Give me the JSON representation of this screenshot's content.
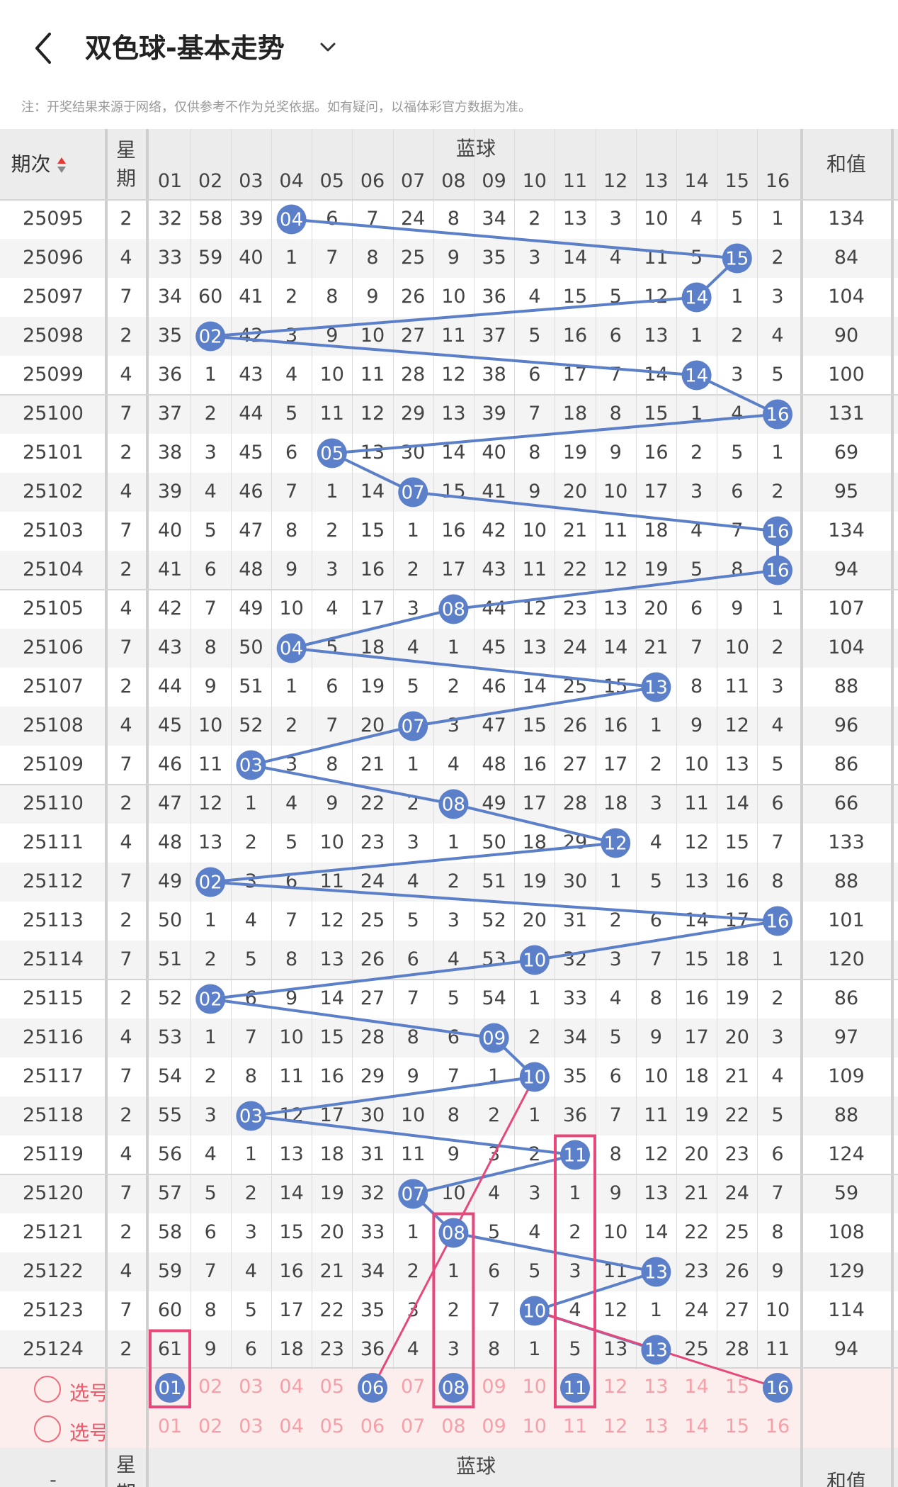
{
  "header": {
    "title": "双色球-基本走势",
    "notice": "注：开奖结果来源于网络，仅供参考不作为兑奖依据。如有疑问，以福体彩官方数据为准。"
  },
  "table": {
    "col_period": "期次",
    "col_weekday": "星期",
    "col_blue": "蓝球",
    "col_sum": "和值",
    "ball_numbers": [
      "01",
      "02",
      "03",
      "04",
      "05",
      "06",
      "07",
      "08",
      "09",
      "10",
      "11",
      "12",
      "13",
      "14",
      "15",
      "16"
    ],
    "rows": [
      {
        "period": "25095",
        "weekday": "2",
        "cells": [
          "32",
          "58",
          "39",
          "04",
          "6",
          "7",
          "24",
          "8",
          "34",
          "2",
          "13",
          "3",
          "10",
          "4",
          "5",
          "1"
        ],
        "hit": 4,
        "sum": "134"
      },
      {
        "period": "25096",
        "weekday": "4",
        "cells": [
          "33",
          "59",
          "40",
          "1",
          "7",
          "8",
          "25",
          "9",
          "35",
          "3",
          "14",
          "4",
          "11",
          "5",
          "15",
          "2"
        ],
        "hit": 15,
        "sum": "84"
      },
      {
        "period": "25097",
        "weekday": "7",
        "cells": [
          "34",
          "60",
          "41",
          "2",
          "8",
          "9",
          "26",
          "10",
          "36",
          "4",
          "15",
          "5",
          "12",
          "14",
          "1",
          "3"
        ],
        "hit": 14,
        "sum": "104"
      },
      {
        "period": "25098",
        "weekday": "2",
        "cells": [
          "35",
          "02",
          "42",
          "3",
          "9",
          "10",
          "27",
          "11",
          "37",
          "5",
          "16",
          "6",
          "13",
          "1",
          "2",
          "4"
        ],
        "hit": 2,
        "sum": "90"
      },
      {
        "period": "25099",
        "weekday": "4",
        "cells": [
          "36",
          "1",
          "43",
          "4",
          "10",
          "11",
          "28",
          "12",
          "38",
          "6",
          "17",
          "7",
          "14",
          "14",
          "3",
          "5"
        ],
        "hit": 14,
        "sum": "100"
      },
      {
        "period": "25100",
        "weekday": "7",
        "cells": [
          "37",
          "2",
          "44",
          "5",
          "11",
          "12",
          "29",
          "13",
          "39",
          "7",
          "18",
          "8",
          "15",
          "1",
          "4",
          "16"
        ],
        "hit": 16,
        "sum": "131"
      },
      {
        "period": "25101",
        "weekday": "2",
        "cells": [
          "38",
          "3",
          "45",
          "6",
          "05",
          "13",
          "30",
          "14",
          "40",
          "8",
          "19",
          "9",
          "16",
          "2",
          "5",
          "1"
        ],
        "hit": 5,
        "sum": "69"
      },
      {
        "period": "25102",
        "weekday": "4",
        "cells": [
          "39",
          "4",
          "46",
          "7",
          "1",
          "14",
          "07",
          "15",
          "41",
          "9",
          "20",
          "10",
          "17",
          "3",
          "6",
          "2"
        ],
        "hit": 7,
        "sum": "95"
      },
      {
        "period": "25103",
        "weekday": "7",
        "cells": [
          "40",
          "5",
          "47",
          "8",
          "2",
          "15",
          "1",
          "16",
          "42",
          "10",
          "21",
          "11",
          "18",
          "4",
          "7",
          "16"
        ],
        "hit": 16,
        "sum": "134"
      },
      {
        "period": "25104",
        "weekday": "2",
        "cells": [
          "41",
          "6",
          "48",
          "9",
          "3",
          "16",
          "2",
          "17",
          "43",
          "11",
          "22",
          "12",
          "19",
          "5",
          "8",
          "16"
        ],
        "hit": 16,
        "sum": "94"
      },
      {
        "period": "25105",
        "weekday": "4",
        "cells": [
          "42",
          "7",
          "49",
          "10",
          "4",
          "17",
          "3",
          "08",
          "44",
          "12",
          "23",
          "13",
          "20",
          "6",
          "9",
          "1"
        ],
        "hit": 8,
        "sum": "107"
      },
      {
        "period": "25106",
        "weekday": "7",
        "cells": [
          "43",
          "8",
          "50",
          "04",
          "5",
          "18",
          "4",
          "1",
          "45",
          "13",
          "24",
          "14",
          "21",
          "7",
          "10",
          "2"
        ],
        "hit": 4,
        "sum": "104"
      },
      {
        "period": "25107",
        "weekday": "2",
        "cells": [
          "44",
          "9",
          "51",
          "1",
          "6",
          "19",
          "5",
          "2",
          "46",
          "14",
          "25",
          "15",
          "13",
          "8",
          "11",
          "3"
        ],
        "hit": 13,
        "sum": "88"
      },
      {
        "period": "25108",
        "weekday": "4",
        "cells": [
          "45",
          "10",
          "52",
          "2",
          "7",
          "20",
          "07",
          "3",
          "47",
          "15",
          "26",
          "16",
          "1",
          "9",
          "12",
          "4"
        ],
        "hit": 7,
        "sum": "96"
      },
      {
        "period": "25109",
        "weekday": "7",
        "cells": [
          "46",
          "11",
          "03",
          "3",
          "8",
          "21",
          "1",
          "4",
          "48",
          "16",
          "27",
          "17",
          "2",
          "10",
          "13",
          "5"
        ],
        "hit": 3,
        "sum": "86"
      },
      {
        "period": "25110",
        "weekday": "2",
        "cells": [
          "47",
          "12",
          "1",
          "4",
          "9",
          "22",
          "2",
          "08",
          "49",
          "17",
          "28",
          "18",
          "3",
          "11",
          "14",
          "6"
        ],
        "hit": 8,
        "sum": "66"
      },
      {
        "period": "25111",
        "weekday": "4",
        "cells": [
          "48",
          "13",
          "2",
          "5",
          "10",
          "23",
          "3",
          "1",
          "50",
          "18",
          "29",
          "12",
          "4",
          "12",
          "15",
          "7"
        ],
        "hit": 12,
        "sum": "133"
      },
      {
        "period": "25112",
        "weekday": "7",
        "cells": [
          "49",
          "02",
          "3",
          "6",
          "11",
          "24",
          "4",
          "2",
          "51",
          "19",
          "30",
          "1",
          "5",
          "13",
          "16",
          "8"
        ],
        "hit": 2,
        "sum": "88"
      },
      {
        "period": "25113",
        "weekday": "2",
        "cells": [
          "50",
          "1",
          "4",
          "7",
          "12",
          "25",
          "5",
          "3",
          "52",
          "20",
          "31",
          "2",
          "6",
          "14",
          "17",
          "16"
        ],
        "hit": 16,
        "sum": "101"
      },
      {
        "period": "25114",
        "weekday": "7",
        "cells": [
          "51",
          "2",
          "5",
          "8",
          "13",
          "26",
          "6",
          "4",
          "53",
          "10",
          "32",
          "3",
          "7",
          "15",
          "18",
          "1"
        ],
        "hit": 10,
        "sum": "120"
      },
      {
        "period": "25115",
        "weekday": "2",
        "cells": [
          "52",
          "02",
          "6",
          "9",
          "14",
          "27",
          "7",
          "5",
          "54",
          "1",
          "33",
          "4",
          "8",
          "16",
          "19",
          "2"
        ],
        "hit": 2,
        "sum": "86"
      },
      {
        "period": "25116",
        "weekday": "4",
        "cells": [
          "53",
          "1",
          "7",
          "10",
          "15",
          "28",
          "8",
          "6",
          "09",
          "2",
          "34",
          "5",
          "9",
          "17",
          "20",
          "3"
        ],
        "hit": 9,
        "sum": "97"
      },
      {
        "period": "25117",
        "weekday": "7",
        "cells": [
          "54",
          "2",
          "8",
          "11",
          "16",
          "29",
          "9",
          "7",
          "1",
          "10",
          "35",
          "6",
          "10",
          "18",
          "21",
          "4"
        ],
        "hit": 10,
        "sum": "109"
      },
      {
        "period": "25118",
        "weekday": "2",
        "cells": [
          "55",
          "3",
          "03",
          "12",
          "17",
          "30",
          "10",
          "8",
          "2",
          "1",
          "36",
          "7",
          "11",
          "19",
          "22",
          "5"
        ],
        "hit": 3,
        "sum": "88"
      },
      {
        "period": "25119",
        "weekday": "4",
        "cells": [
          "56",
          "4",
          "1",
          "13",
          "18",
          "31",
          "11",
          "9",
          "3",
          "2",
          "11",
          "8",
          "12",
          "20",
          "23",
          "6"
        ],
        "hit": 11,
        "sum": "124"
      },
      {
        "period": "25120",
        "weekday": "7",
        "cells": [
          "57",
          "5",
          "2",
          "14",
          "19",
          "32",
          "07",
          "10",
          "4",
          "3",
          "1",
          "9",
          "13",
          "21",
          "24",
          "7"
        ],
        "hit": 7,
        "sum": "59"
      },
      {
        "period": "25121",
        "weekday": "2",
        "cells": [
          "58",
          "6",
          "3",
          "15",
          "20",
          "33",
          "1",
          "08",
          "5",
          "4",
          "2",
          "10",
          "14",
          "22",
          "25",
          "8"
        ],
        "hit": 8,
        "sum": "108"
      },
      {
        "period": "25122",
        "weekday": "4",
        "cells": [
          "59",
          "7",
          "4",
          "16",
          "21",
          "34",
          "2",
          "1",
          "6",
          "5",
          "3",
          "11",
          "13",
          "23",
          "26",
          "9"
        ],
        "hit": 13,
        "sum": "129"
      },
      {
        "period": "25123",
        "weekday": "7",
        "cells": [
          "60",
          "8",
          "5",
          "17",
          "22",
          "35",
          "3",
          "2",
          "7",
          "10",
          "4",
          "12",
          "1",
          "24",
          "27",
          "10"
        ],
        "hit": 10,
        "sum": "114"
      },
      {
        "period": "25124",
        "weekday": "2",
        "cells": [
          "61",
          "9",
          "6",
          "18",
          "23",
          "36",
          "4",
          "3",
          "8",
          "1",
          "5",
          "13",
          "13",
          "25",
          "28",
          "11"
        ],
        "hit": 13,
        "sum": "94"
      }
    ]
  },
  "picker": {
    "label": "选号",
    "row1_selected": [
      "01",
      "06",
      "08",
      "11",
      "16"
    ],
    "row2_selected": []
  },
  "colors": {
    "ball": "#5b7fc8",
    "trend_line": "#5b7fc8",
    "forecast_line": "#e8477a",
    "box": "#e8477a",
    "picker_text": "#f5a0a8",
    "picker_bg": "#fdeeee"
  },
  "forecast_lines": [
    {
      "from": {
        "row": "picker1",
        "col": 6
      },
      "to": {
        "row": 22,
        "col": 10
      }
    },
    {
      "from": {
        "row": 28,
        "col": 10
      },
      "to": {
        "row": "picker1",
        "col": 16
      }
    }
  ],
  "boxes": [
    {
      "col": 1,
      "from_row": 29,
      "to_row": "picker1"
    },
    {
      "col": 8,
      "from_row": 26,
      "to_row": "picker1"
    },
    {
      "col": 11,
      "from_row": 24,
      "to_row": "picker1"
    }
  ]
}
